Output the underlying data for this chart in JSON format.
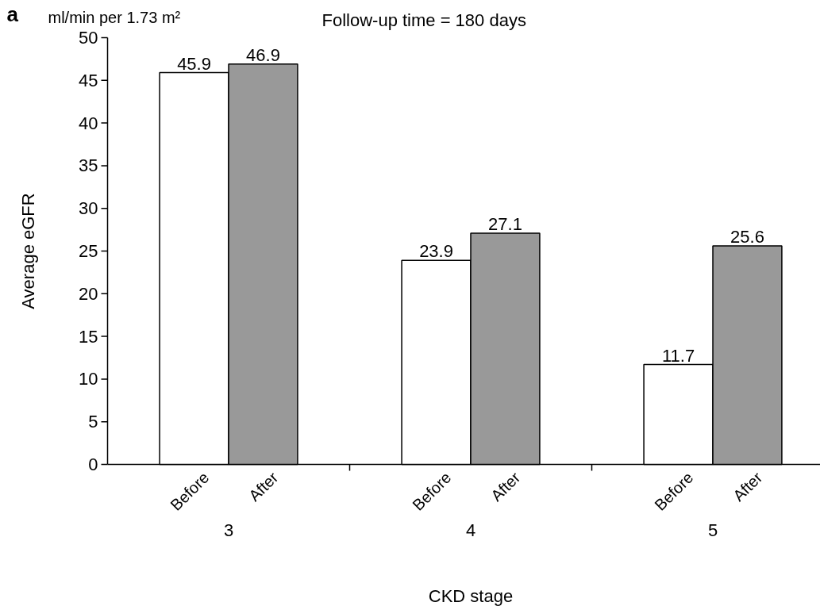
{
  "chart_data": {
    "type": "bar",
    "xlabel": "CKD stage",
    "ylabel": "Average eGFR",
    "annotations": [
      "a",
      "ml/min per 1.73 m²",
      "Follow-up time = 180 days"
    ],
    "categories": [
      "3",
      "4",
      "5"
    ],
    "series": [
      {
        "name": "Before",
        "color": "#ffffff",
        "values": [
          45.9,
          23.9,
          11.7
        ]
      },
      {
        "name": "After",
        "color": "#999999",
        "values": [
          46.9,
          27.1,
          25.6
        ]
      }
    ],
    "ylim": [
      0,
      50
    ],
    "yticks": [
      0,
      5,
      10,
      15,
      20,
      25,
      30,
      35,
      40,
      45,
      50
    ],
    "data_labels": true,
    "grid": false
  }
}
